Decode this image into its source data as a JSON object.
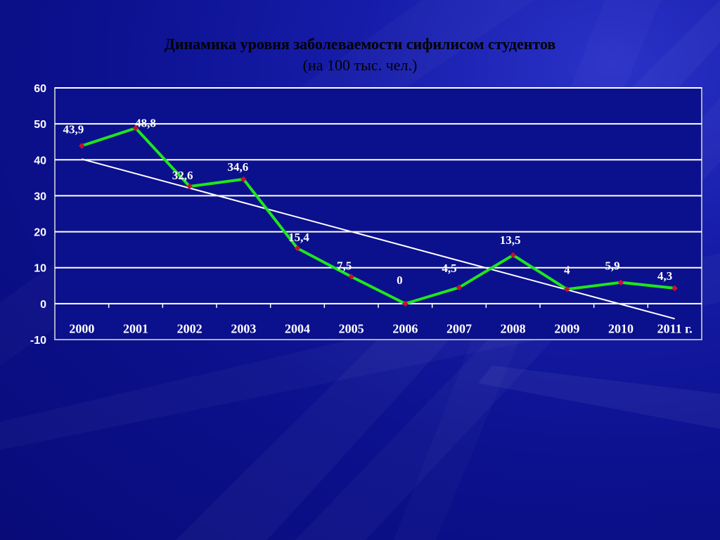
{
  "chart_data": {
    "type": "line",
    "title": "Динамика уровня заболеваемости сифилисом студентов",
    "subtitle": "(на 100 тыс. чел.)",
    "categories": [
      "2000",
      "2001",
      "2002",
      "2003",
      "2004",
      "2005",
      "2006",
      "2007",
      "2008",
      "2009",
      "2010",
      "2011 г."
    ],
    "series": [
      {
        "values": [
          43.9,
          48.8,
          32.6,
          34.6,
          15.4,
          7.5,
          0,
          4.5,
          13.5,
          4,
          5.9,
          4.3
        ],
        "labels": [
          "43,9",
          "48,8",
          "32,6",
          "34,6",
          "15,4",
          "7,5",
          "0",
          "4,5",
          "13,5",
          "4",
          "5,9",
          "4,3"
        ],
        "color": "#1ee61e",
        "marker_color": "#c8102e"
      }
    ],
    "trendline": {
      "start": 40.2,
      "end": -4.2,
      "color": "#ffffff"
    },
    "ylim": [
      -10,
      60
    ],
    "yticks": [
      "60",
      "50",
      "40",
      "30",
      "20",
      "10",
      "0",
      "-10"
    ],
    "ytick_values": [
      60,
      50,
      40,
      30,
      20,
      10,
      0,
      -10
    ],
    "grid": true,
    "legend": "none",
    "background_color": "#0b108c",
    "plot_color": "#0b108c",
    "text_color": "#ffffff",
    "title_color": "#000000"
  }
}
